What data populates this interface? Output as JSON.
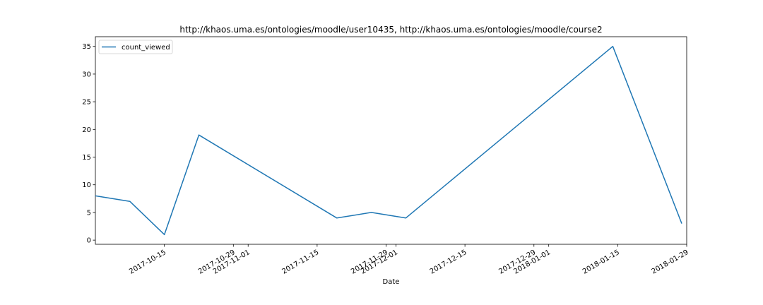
{
  "chart_data": {
    "type": "line",
    "title": "http://khaos.uma.es/ontologies/moodle/user10435, http://khaos.uma.es/ontologies/moodle/course2",
    "xlabel": "Date",
    "ylabel": "",
    "x_type": "date",
    "xlim": [
      "2017-10-01",
      "2018-01-29"
    ],
    "ylim": [
      -0.75,
      36.75
    ],
    "x_ticks": [
      "2017-10-15",
      "2017-10-29",
      "2017-11-01",
      "2017-11-15",
      "2017-11-29",
      "2017-12-01",
      "2017-12-15",
      "2017-12-29",
      "2018-01-01",
      "2018-01-15",
      "2018-01-29"
    ],
    "y_ticks": [
      0,
      5,
      10,
      15,
      20,
      25,
      30,
      35
    ],
    "grid": false,
    "legend_position": "upper-left",
    "series": [
      {
        "name": "count_viewed",
        "color": "#1f77b4",
        "x": [
          "2017-10-01",
          "2017-10-08",
          "2017-10-15",
          "2017-10-22",
          "2017-11-19",
          "2017-11-26",
          "2017-12-03",
          "2018-01-14",
          "2018-01-28"
        ],
        "values": [
          8,
          7,
          1,
          19,
          4,
          5,
          4,
          35,
          3
        ]
      }
    ]
  }
}
